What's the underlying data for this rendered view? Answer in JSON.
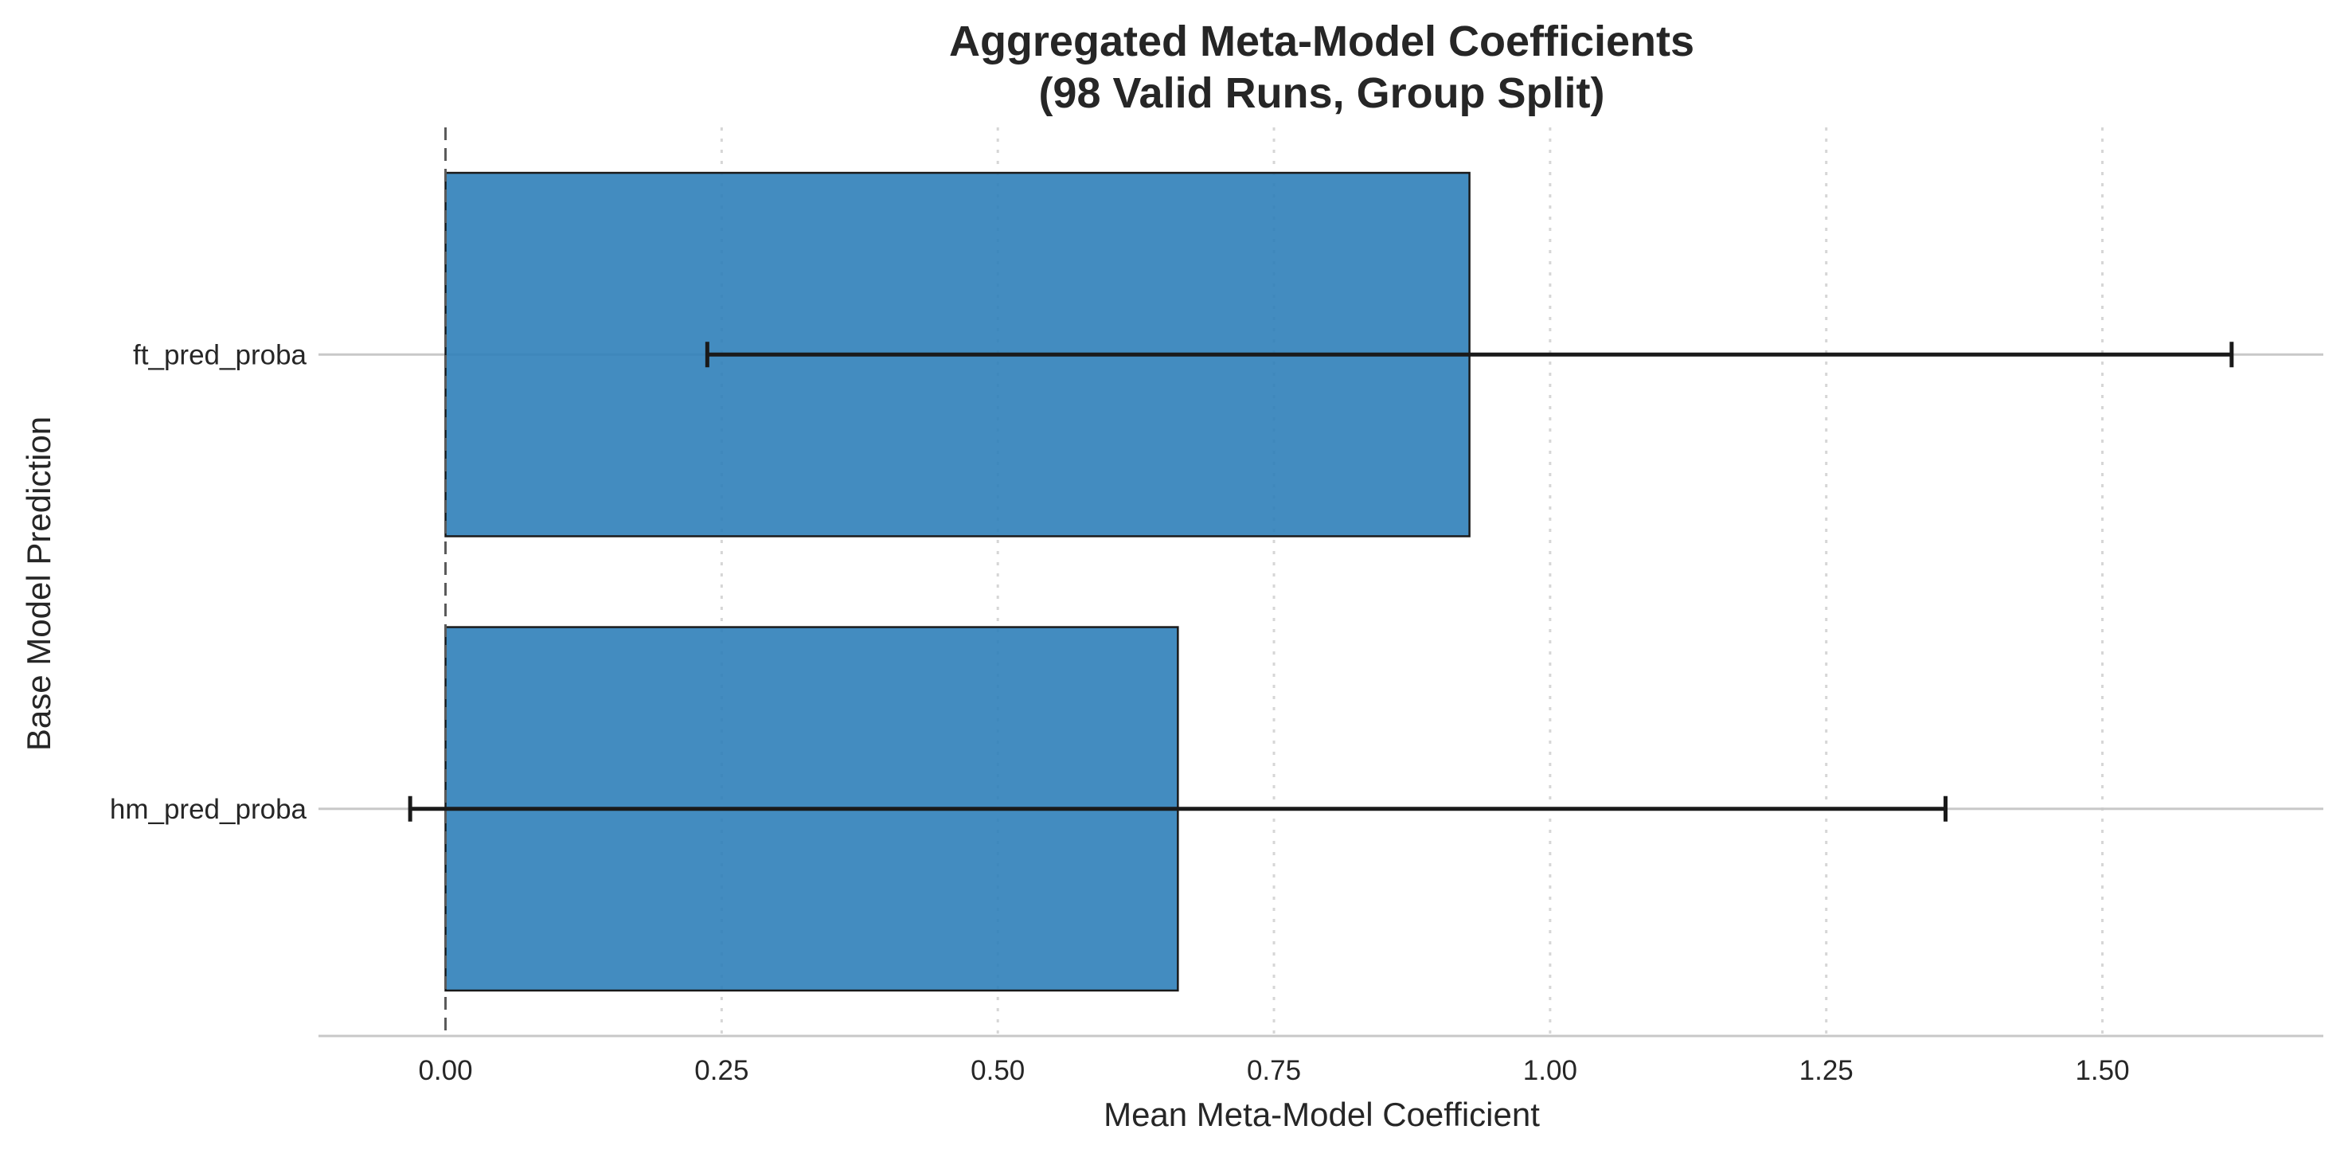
{
  "chart_data": {
    "type": "bar",
    "orientation": "horizontal",
    "title_lines": [
      "Aggregated Meta-Model Coefficients",
      "(98 Valid Runs, Group Split)"
    ],
    "xlabel": "Mean Meta-Model Coefficient",
    "ylabel": "Base Model Prediction",
    "categories": [
      "ft_pred_proba",
      "hm_pred_proba"
    ],
    "values": [
      0.927,
      0.663
    ],
    "error": [
      0.69,
      0.695
    ],
    "xlim": [
      -0.115,
      1.7
    ],
    "xticks": [
      0.0,
      0.25,
      0.5,
      0.75,
      1.0,
      1.25,
      1.5
    ],
    "xtick_labels": [
      "0.00",
      "0.25",
      "0.50",
      "0.75",
      "1.00",
      "1.25",
      "1.50"
    ],
    "reference_line_x": 0.0,
    "grid": true,
    "colors": {
      "bar": "#2f7fb9",
      "edge": "#1a1a1a",
      "error": "#1a1a1a"
    }
  }
}
